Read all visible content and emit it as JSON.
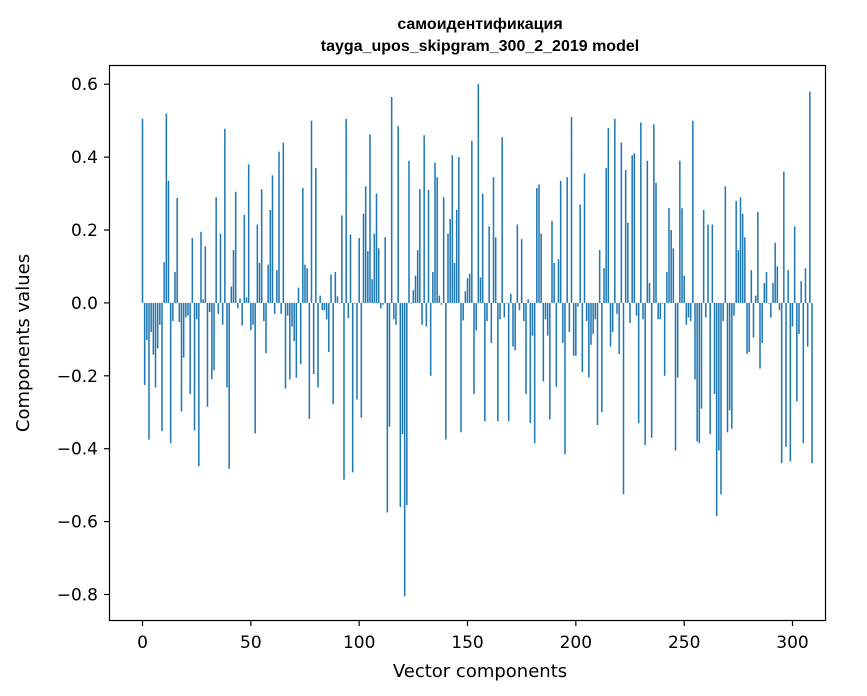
{
  "chart_data": {
    "type": "bar",
    "title_line1": "самоидентификация",
    "title_line2": "tayga_upos_skipgram_300_2_2019 model",
    "xlabel": "Vector components",
    "ylabel": "Components values",
    "xlim": [
      -15,
      315
    ],
    "ylim": [
      -0.87,
      0.65
    ],
    "xticks": [
      0,
      50,
      100,
      150,
      200,
      250,
      300
    ],
    "xtick_labels": [
      "0",
      "50",
      "100",
      "150",
      "200",
      "250",
      "300"
    ],
    "yticks": [
      -0.8,
      -0.6,
      -0.4,
      -0.2,
      0.0,
      0.2,
      0.4,
      0.6
    ],
    "ytick_labels": [
      "−0.8",
      "−0.6",
      "−0.4",
      "−0.2",
      "0.0",
      "0.2",
      "0.4",
      "0.6"
    ],
    "bar_color": "#1f77b4",
    "values": [
      0.505,
      -0.225,
      -0.102,
      -0.375,
      -0.08,
      -0.142,
      -0.232,
      -0.125,
      -0.06,
      -0.352,
      0.112,
      0.52,
      0.335,
      -0.385,
      -0.05,
      0.085,
      0.288,
      -0.052,
      -0.298,
      -0.15,
      -0.04,
      -0.035,
      -0.25,
      0.178,
      -0.35,
      -0.045,
      -0.448,
      0.195,
      0.01,
      0.155,
      -0.285,
      -0.025,
      -0.21,
      -0.185,
      0.29,
      -0.03,
      0.19,
      -0.06,
      0.478,
      -0.232,
      -0.455,
      0.045,
      0.145,
      0.305,
      -0.015,
      0.012,
      -0.062,
      0.242,
      0.015,
      0.38,
      -0.075,
      -0.06,
      -0.358,
      0.215,
      0.11,
      0.312,
      -0.05,
      -0.138,
      0.105,
      0.255,
      0.35,
      -0.03,
      0.09,
      0.415,
      -0.03,
      0.44,
      -0.235,
      -0.035,
      -0.21,
      -0.065,
      -0.105,
      -0.205,
      0.042,
      -0.168,
      0.315,
      0.105,
      0.095,
      -0.318,
      0.5,
      -0.195,
      0.37,
      -0.232,
      0.02,
      -0.02,
      -0.02,
      -0.045,
      -0.135,
      0.078,
      -0.278,
      0.085,
      0.018,
      0.0,
      0.24,
      -0.485,
      0.505,
      -0.042,
      0.188,
      -0.465,
      0.0,
      -0.265,
      0.178,
      -0.315,
      0.245,
      0.32,
      0.142,
      0.462,
      0.065,
      0.19,
      0.3,
      0.15,
      -0.015,
      -0.005,
      0.18,
      -0.575,
      -0.34,
      0.565,
      -0.045,
      -0.06,
      0.485,
      -0.56,
      -0.36,
      -0.805,
      -0.555,
      0.39,
      0.0,
      0.035,
      0.075,
      0.145,
      0.312,
      -0.06,
      0.46,
      -0.065,
      0.31,
      -0.2,
      0.085,
      0.385,
      0.345,
      0.02,
      -0.005,
      0.29,
      -0.375,
      0.19,
      0.23,
      0.405,
      0.11,
      0.255,
      0.4,
      -0.355,
      -0.048,
      0.032,
      0.068,
      0.08,
      0.445,
      -0.25,
      -0.075,
      0.6,
      0.07,
      0.3,
      -0.325,
      -0.05,
      0.21,
      -0.11,
      0.345,
      0.18,
      -0.325,
      -0.045,
      0.455,
      -0.04,
      0.0,
      -0.325,
      0.025,
      -0.12,
      -0.13,
      0.215,
      -0.02,
      0.175,
      -0.05,
      -0.25,
      0.01,
      -0.33,
      -0.09,
      -0.385,
      0.315,
      0.325,
      0.19,
      -0.215,
      -0.045,
      -0.09,
      -0.32,
      0.225,
      0.11,
      -0.23,
      0.12,
      0.335,
      -0.11,
      -0.415,
      0.345,
      -0.08,
      0.51,
      -0.145,
      -0.145,
      -0.01,
      0.27,
      -0.19,
      0.355,
      -0.05,
      -0.205,
      -0.115,
      -0.085,
      -0.045,
      -0.335,
      0.145,
      -0.3,
      0.095,
      0.37,
      0.48,
      -0.12,
      -0.08,
      0.505,
      -0.03,
      -0.14,
      0.44,
      -0.525,
      0.365,
      0.22,
      -0.055,
      0.405,
      0.41,
      -0.035,
      -0.33,
      0.495,
      -0.045,
      -0.39,
      0.39,
      0.055,
      -0.37,
      0.49,
      0.33,
      -0.045,
      -0.045,
      0.0,
      -0.2,
      0.085,
      0.26,
      0.2,
      0.15,
      -0.405,
      -0.205,
      0.39,
      0.26,
      0.075,
      -0.06,
      -0.04,
      -0.05,
      0.5,
      -0.21,
      -0.38,
      -0.385,
      -0.29,
      0.255,
      -0.04,
      0.215,
      -0.36,
      0.215,
      -0.25,
      -0.585,
      -0.405,
      -0.525,
      -0.05,
      0.32,
      -0.355,
      -0.295,
      -0.345,
      -0.035,
      0.28,
      0.145,
      0.29,
      0.245,
      0.18,
      -0.14,
      -0.135,
      0.09,
      -0.095,
      0.02,
      0.25,
      -0.18,
      -0.11,
      0.055,
      0.085,
      0.0,
      -0.04,
      0.055,
      0.165,
      0.1,
      -0.02,
      -0.44,
      0.36,
      -0.395,
      0.09,
      -0.435,
      -0.065,
      0.21,
      -0.27,
      -0.085,
      0.06,
      -0.385,
      0.095,
      -0.12,
      0.58,
      -0.44
    ]
  }
}
